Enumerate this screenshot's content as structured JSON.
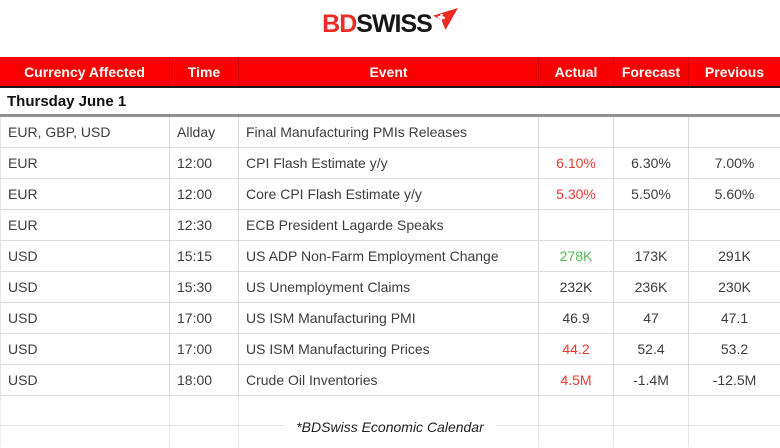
{
  "logo": {
    "part1": "BD",
    "part2": "SWISS"
  },
  "colors": {
    "header_bg": "#fc0000",
    "logo_red": "#ed2a24",
    "negative_value": "#ee3b35",
    "positive_value": "#57b957",
    "gridline": "#dcdcdc"
  },
  "table": {
    "columns": [
      "Currency Affected",
      "Time",
      "Event",
      "Actual",
      "Forecast",
      "Previous"
    ],
    "date_header": "Thursday June 1",
    "rows": [
      {
        "currency": "EUR, GBP, USD",
        "time": "Allday",
        "event": "Final Manufacturing PMIs Releases",
        "actual": "",
        "forecast": "",
        "previous": "",
        "actual_color": "default"
      },
      {
        "currency": "EUR",
        "time": "12:00",
        "event": "CPI Flash Estimate y/y",
        "actual": "6.10%",
        "forecast": "6.30%",
        "previous": "7.00%",
        "actual_color": "red"
      },
      {
        "currency": "EUR",
        "time": "12:00",
        "event": "Core CPI Flash Estimate y/y",
        "actual": "5.30%",
        "forecast": "5.50%",
        "previous": "5.60%",
        "actual_color": "red"
      },
      {
        "currency": "EUR",
        "time": "12:30",
        "event": "ECB President Lagarde Speaks",
        "actual": "",
        "forecast": "",
        "previous": "",
        "actual_color": "default"
      },
      {
        "currency": "USD",
        "time": "15:15",
        "event": "US ADP Non-Farm Employment Change",
        "actual": "278K",
        "forecast": "173K",
        "previous": "291K",
        "actual_color": "green"
      },
      {
        "currency": "USD",
        "time": "15:30",
        "event": "US Unemployment Claims",
        "actual": "232K",
        "forecast": "236K",
        "previous": "230K",
        "actual_color": "default"
      },
      {
        "currency": "USD",
        "time": "17:00",
        "event": "US ISM Manufacturing PMI",
        "actual": "46.9",
        "forecast": "47",
        "previous": "47.1",
        "actual_color": "default"
      },
      {
        "currency": "USD",
        "time": "17:00",
        "event": "US ISM Manufacturing Prices",
        "actual": "44.2",
        "forecast": "52.4",
        "previous": "53.2",
        "actual_color": "red"
      },
      {
        "currency": "USD",
        "time": "18:00",
        "event": "Crude Oil Inventories",
        "actual": "4.5M",
        "forecast": "-1.4M",
        "previous": "-12.5M",
        "actual_color": "red"
      }
    ],
    "footer_note": "*BDSwiss Economic Calendar"
  }
}
